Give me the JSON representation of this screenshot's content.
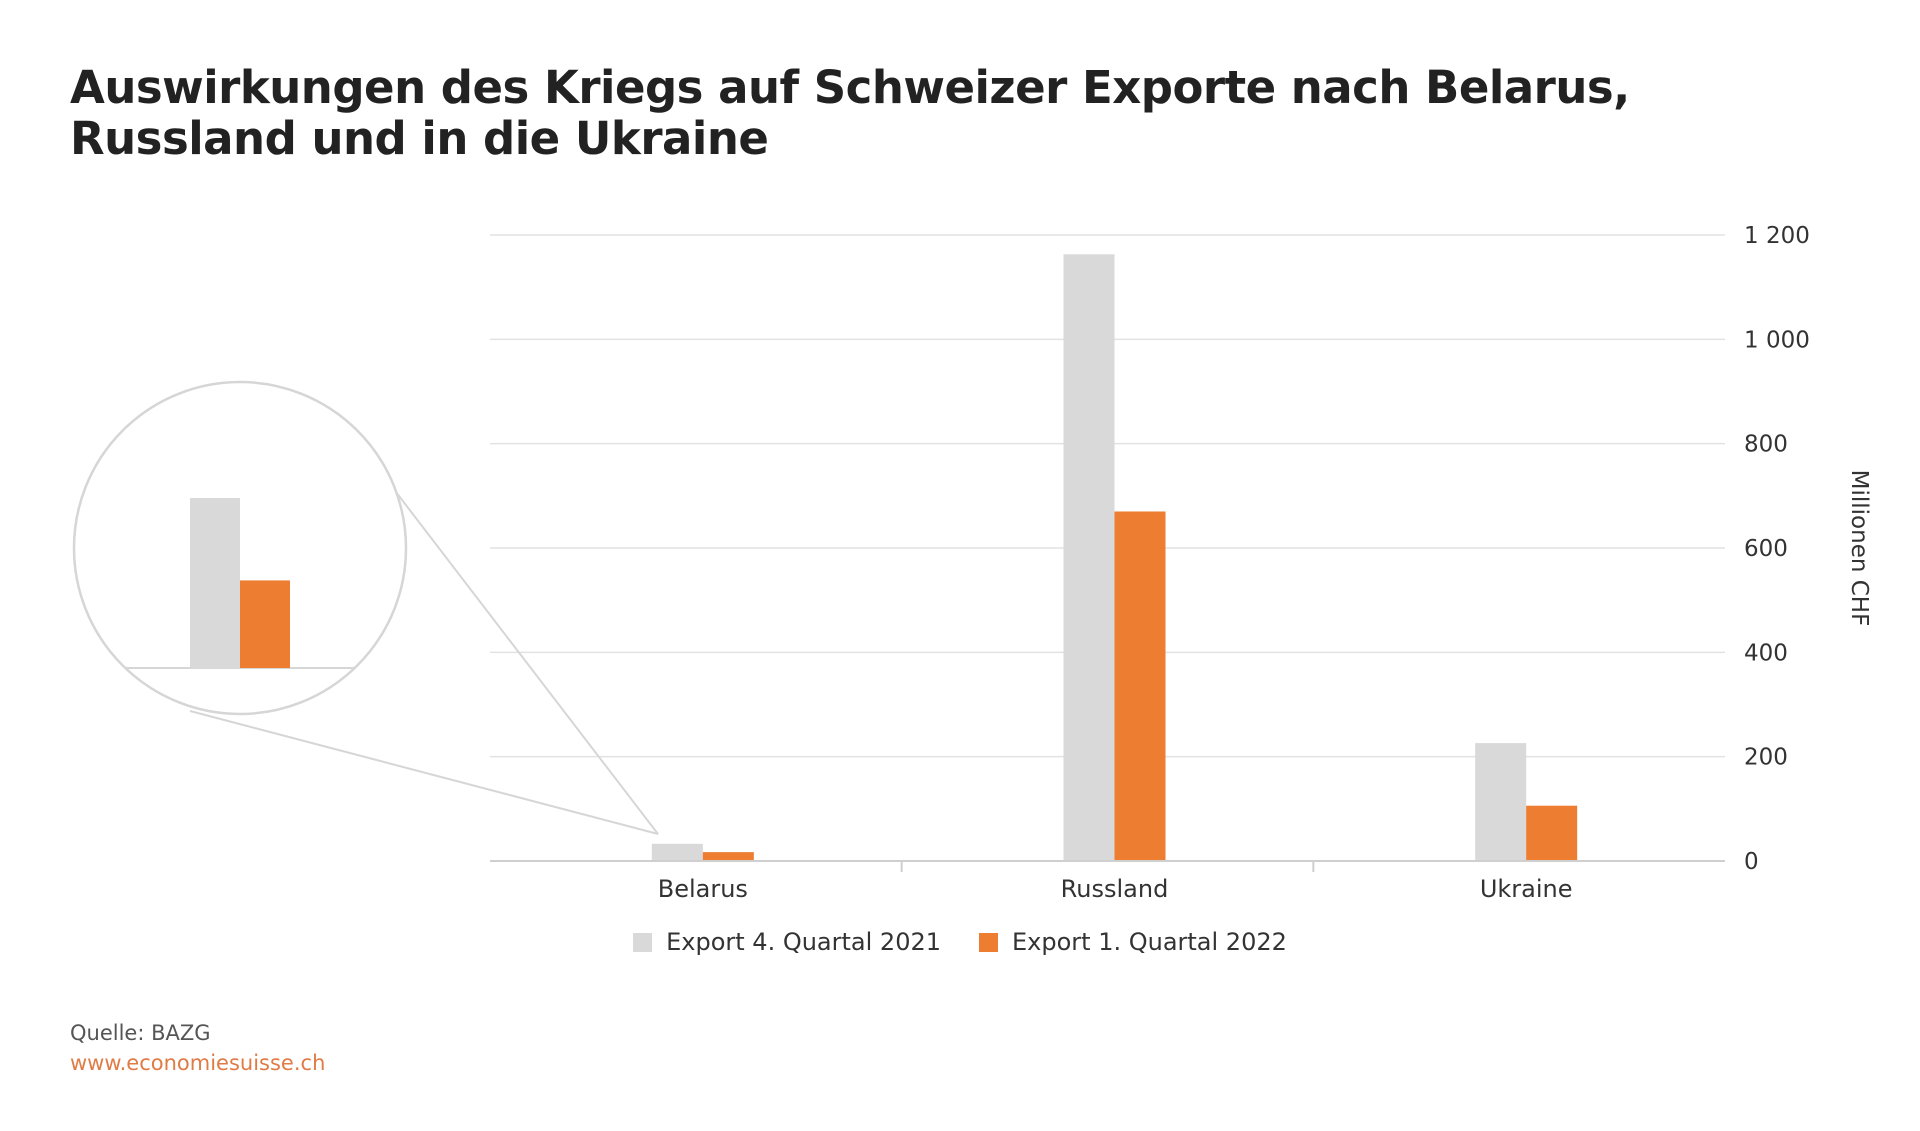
{
  "chart_data": {
    "type": "bar",
    "title": "Auswirkungen des Kriegs auf Schweizer Exporte nach Belarus, Russland und in die Ukraine",
    "ylabel": "Millionen CHF",
    "xlabel": "",
    "categories": [
      "Belarus",
      "Russland",
      "Ukraine"
    ],
    "series": [
      {
        "name": "Export 4. Quartal 2021",
        "color": "#d9d9d9",
        "values": [
          33,
          1163,
          226
        ]
      },
      {
        "name": "Export 1. Quartal 2022",
        "color": "#ed7d31",
        "values": [
          17,
          670,
          106
        ]
      }
    ],
    "ylim": [
      0,
      1200
    ],
    "yticks": [
      0,
      200,
      400,
      600,
      800,
      1000,
      1200
    ],
    "ytick_labels": [
      "0",
      "200",
      "400",
      "600",
      "800",
      "1 000",
      "1 200"
    ],
    "y_axis_position": "right",
    "grid": true,
    "legend_position": "bottom-center",
    "inset": "magnified view of Belarus bars"
  },
  "footer": {
    "source": "Quelle: BAZG",
    "url": "www.economiesuisse.ch"
  }
}
